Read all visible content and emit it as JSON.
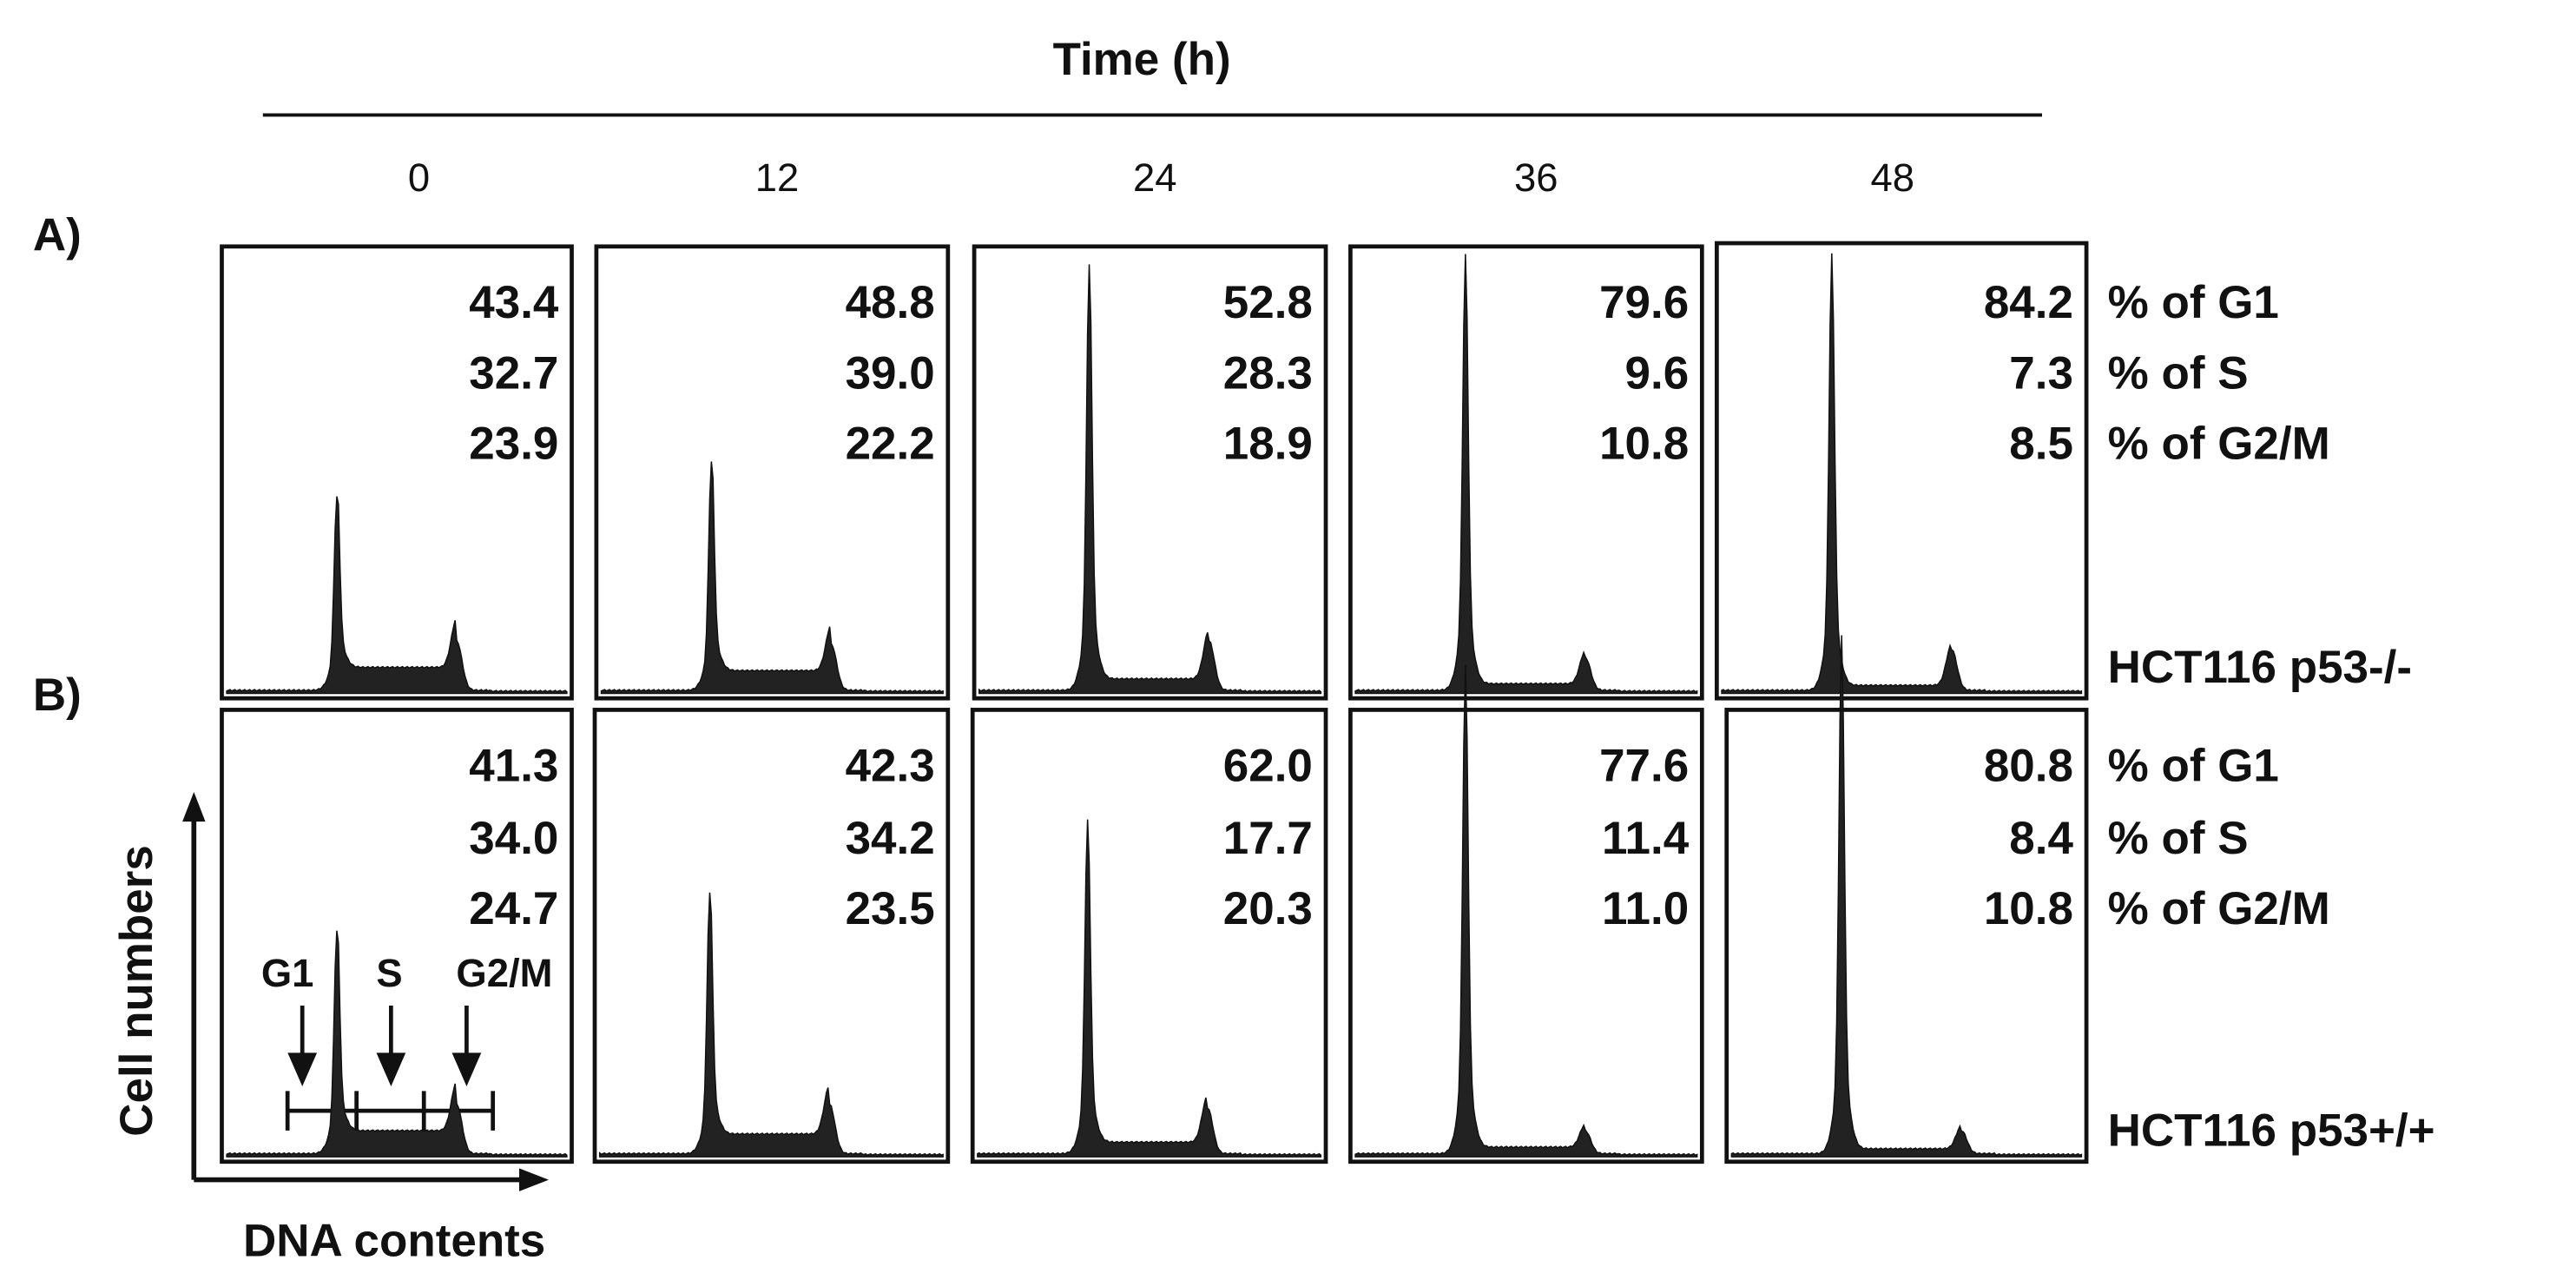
{
  "header": {
    "title": "Time (h)",
    "times": [
      "0",
      "12",
      "24",
      "36",
      "48"
    ]
  },
  "panels": [
    {
      "label": "A)",
      "cell_line": "HCT116 p53-/-",
      "row_labels": [
        "% of G1",
        "% of S",
        "% of G2/M"
      ],
      "values": [
        [
          "43.4",
          "32.7",
          "23.9"
        ],
        [
          "48.8",
          "39.0",
          "22.2"
        ],
        [
          "52.8",
          "28.3",
          "18.9"
        ],
        [
          "79.6",
          "9.6",
          "10.8"
        ],
        [
          "84.2",
          "7.3",
          "8.5"
        ]
      ]
    },
    {
      "label": "B)",
      "cell_line": "HCT116 p53+/+",
      "row_labels": [
        "% of G1",
        "% of S",
        "% of G2/M"
      ],
      "values": [
        [
          "41.3",
          "34.0",
          "24.7"
        ],
        [
          "42.3",
          "34.2",
          "23.5"
        ],
        [
          "62.0",
          "17.7",
          "20.3"
        ],
        [
          "77.6",
          "11.4",
          "11.0"
        ],
        [
          "80.8",
          "8.4",
          "10.8"
        ]
      ]
    }
  ],
  "axes": {
    "y_label": "Cell numbers",
    "x_label": "DNA contents"
  },
  "phases": [
    "G1",
    "S",
    "G2/M"
  ]
}
